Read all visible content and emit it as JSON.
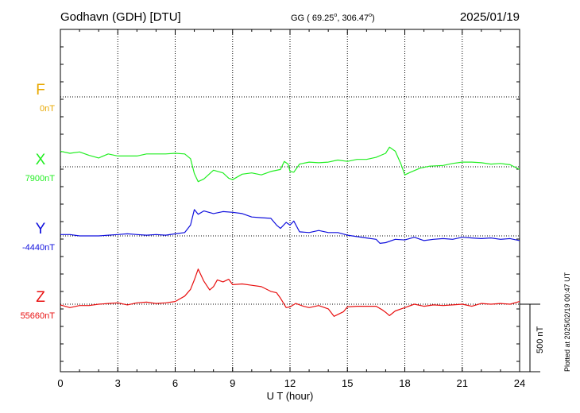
{
  "header": {
    "station": "Godhavn (GDH)  [DTU]",
    "coords_prefix": "GG ( 69.25",
    "coords_mid": ", 306.47",
    "coords_suffix": ")",
    "degree_mark": "o",
    "date": "2025/01/19"
  },
  "footer": {
    "plotted": "Plotted at 2025/02/19 00:47 UT",
    "scale_label": "500 nT"
  },
  "chart_data": {
    "type": "line",
    "xlabel": "U T (hour)",
    "xlim": [
      0,
      24
    ],
    "xticks": [
      "0",
      "3",
      "6",
      "9",
      "12",
      "15",
      "18",
      "21",
      "24"
    ],
    "grid": true,
    "y_units": "nT, relative to per-component baseline; 500 nT scale bar",
    "series": [
      {
        "name": "F",
        "baseline_label": "0nT",
        "color": "#e8a800",
        "points": []
      },
      {
        "name": "X",
        "baseline_label": "7900nT",
        "color": "#22ee22",
        "points": [
          [
            0,
            115
          ],
          [
            0.5,
            100
          ],
          [
            1,
            110
          ],
          [
            1.5,
            85
          ],
          [
            2,
            65
          ],
          [
            2.5,
            95
          ],
          [
            3,
            80
          ],
          [
            3.5,
            80
          ],
          [
            4,
            80
          ],
          [
            4.5,
            95
          ],
          [
            5,
            95
          ],
          [
            5.5,
            95
          ],
          [
            6,
            100
          ],
          [
            6.5,
            95
          ],
          [
            6.8,
            60
          ],
          [
            7,
            -50
          ],
          [
            7.2,
            -110
          ],
          [
            7.5,
            -90
          ],
          [
            8,
            -25
          ],
          [
            8.5,
            -45
          ],
          [
            8.8,
            -85
          ],
          [
            9,
            -95
          ],
          [
            9.5,
            -55
          ],
          [
            10,
            -45
          ],
          [
            10.5,
            -60
          ],
          [
            11,
            -35
          ],
          [
            11.5,
            -20
          ],
          [
            11.7,
            40
          ],
          [
            11.9,
            20
          ],
          [
            12,
            -35
          ],
          [
            12.2,
            -40
          ],
          [
            12.5,
            20
          ],
          [
            13,
            35
          ],
          [
            13.5,
            30
          ],
          [
            14,
            35
          ],
          [
            14.5,
            50
          ],
          [
            15,
            40
          ],
          [
            15.5,
            55
          ],
          [
            16,
            55
          ],
          [
            16.5,
            70
          ],
          [
            17,
            100
          ],
          [
            17.2,
            145
          ],
          [
            17.5,
            115
          ],
          [
            17.8,
            20
          ],
          [
            18,
            -60
          ],
          [
            18.3,
            -40
          ],
          [
            18.8,
            -10
          ],
          [
            19.3,
            5
          ],
          [
            20,
            10
          ],
          [
            20.5,
            25
          ],
          [
            21,
            35
          ],
          [
            21.5,
            35
          ],
          [
            22,
            30
          ],
          [
            22.5,
            20
          ],
          [
            23,
            25
          ],
          [
            23.5,
            15
          ],
          [
            24,
            -20
          ]
        ]
      },
      {
        "name": "Y",
        "baseline_label": "-4440nT",
        "color": "#1010dd",
        "points": [
          [
            0,
            10
          ],
          [
            0.5,
            10
          ],
          [
            1,
            0
          ],
          [
            1.5,
            0
          ],
          [
            2,
            0
          ],
          [
            2.5,
            5
          ],
          [
            3,
            10
          ],
          [
            3.5,
            15
          ],
          [
            4,
            10
          ],
          [
            4.5,
            5
          ],
          [
            5,
            10
          ],
          [
            5.5,
            5
          ],
          [
            6,
            15
          ],
          [
            6.5,
            25
          ],
          [
            6.8,
            80
          ],
          [
            7,
            195
          ],
          [
            7.2,
            160
          ],
          [
            7.5,
            185
          ],
          [
            8,
            165
          ],
          [
            8.5,
            180
          ],
          [
            9,
            175
          ],
          [
            9.5,
            165
          ],
          [
            10,
            140
          ],
          [
            10.5,
            135
          ],
          [
            11,
            130
          ],
          [
            11.3,
            80
          ],
          [
            11.5,
            55
          ],
          [
            11.8,
            100
          ],
          [
            12,
            80
          ],
          [
            12.2,
            110
          ],
          [
            12.5,
            30
          ],
          [
            13,
            25
          ],
          [
            13.5,
            40
          ],
          [
            14,
            25
          ],
          [
            14.5,
            25
          ],
          [
            15,
            5
          ],
          [
            15.5,
            -5
          ],
          [
            16,
            -15
          ],
          [
            16.5,
            -25
          ],
          [
            16.7,
            -55
          ],
          [
            17,
            -50
          ],
          [
            17.5,
            -25
          ],
          [
            18,
            -30
          ],
          [
            18.5,
            -10
          ],
          [
            19,
            -35
          ],
          [
            19.5,
            -25
          ],
          [
            20,
            -20
          ],
          [
            20.5,
            -25
          ],
          [
            21,
            -10
          ],
          [
            21.5,
            -15
          ],
          [
            22,
            -20
          ],
          [
            22.5,
            -15
          ],
          [
            23,
            -25
          ],
          [
            23.5,
            -20
          ],
          [
            24,
            -35
          ]
        ]
      },
      {
        "name": "Z",
        "baseline_label": "55660nT",
        "color": "#e81010",
        "points": [
          [
            0,
            -5
          ],
          [
            0.5,
            -25
          ],
          [
            1,
            -10
          ],
          [
            1.5,
            -10
          ],
          [
            2,
            0
          ],
          [
            2.5,
            5
          ],
          [
            3,
            10
          ],
          [
            3.5,
            -5
          ],
          [
            4,
            10
          ],
          [
            4.5,
            15
          ],
          [
            5,
            5
          ],
          [
            5.5,
            10
          ],
          [
            6,
            20
          ],
          [
            6.5,
            60
          ],
          [
            6.8,
            110
          ],
          [
            7,
            180
          ],
          [
            7.2,
            260
          ],
          [
            7.5,
            170
          ],
          [
            7.8,
            105
          ],
          [
            8,
            130
          ],
          [
            8.2,
            180
          ],
          [
            8.5,
            165
          ],
          [
            8.8,
            185
          ],
          [
            9,
            145
          ],
          [
            9.5,
            150
          ],
          [
            10,
            140
          ],
          [
            10.5,
            130
          ],
          [
            11,
            95
          ],
          [
            11.3,
            85
          ],
          [
            11.5,
            45
          ],
          [
            11.8,
            -25
          ],
          [
            12,
            -20
          ],
          [
            12.3,
            5
          ],
          [
            12.7,
            -15
          ],
          [
            13,
            -25
          ],
          [
            13.5,
            -10
          ],
          [
            14,
            -35
          ],
          [
            14.3,
            -90
          ],
          [
            14.8,
            -55
          ],
          [
            15,
            -20
          ],
          [
            15.5,
            -15
          ],
          [
            16,
            -15
          ],
          [
            16.5,
            -15
          ],
          [
            16.8,
            -40
          ],
          [
            17,
            -60
          ],
          [
            17.2,
            -85
          ],
          [
            17.5,
            -50
          ],
          [
            18,
            -25
          ],
          [
            18.5,
            0
          ],
          [
            19,
            -15
          ],
          [
            19.5,
            -5
          ],
          [
            20,
            -10
          ],
          [
            20.5,
            -5
          ],
          [
            21,
            0
          ],
          [
            21.5,
            -15
          ],
          [
            22,
            5
          ],
          [
            22.5,
            0
          ],
          [
            23,
            5
          ],
          [
            23.5,
            0
          ],
          [
            24,
            20
          ]
        ]
      }
    ]
  }
}
